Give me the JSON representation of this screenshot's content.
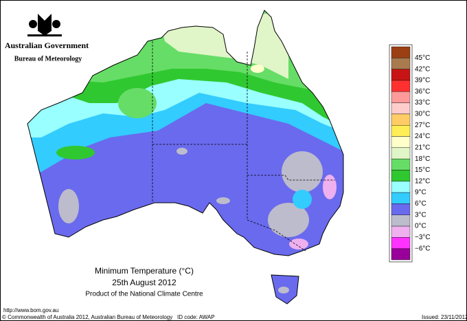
{
  "header": {
    "title": "Australian Government",
    "subtitle": "Bureau of Meteorology"
  },
  "legend": {
    "swatches": [
      "#9b3f14",
      "#a87a4e",
      "#c81414",
      "#ff3030",
      "#ff9a9a",
      "#ffcccc",
      "#ffcc66",
      "#ffee55",
      "#ffffcc",
      "#e0f5c8",
      "#66dd66",
      "#30c830",
      "#99ffff",
      "#33ccff",
      "#6a6aee",
      "#bcbccc",
      "#eeb0ee",
      "#ff33ff",
      "#990099"
    ],
    "labels": [
      "45°C",
      "42°C",
      "39°C",
      "36°C",
      "33°C",
      "30°C",
      "27°C",
      "24°C",
      "21°C",
      "18°C",
      "15°C",
      "12°C",
      "9°C",
      "6°C",
      "3°C",
      "0°C",
      "−3°C",
      "−6°C"
    ]
  },
  "caption": {
    "title": "Minimum Temperature (°C)",
    "date": "25th August 2012",
    "product": "Product of the National Climate Centre"
  },
  "footer": {
    "url": "http://www.bom.gov.au",
    "copyright": "© Commonwealth of Australia 2012, Australian Bureau of Meteorology",
    "id_code": "ID code: AWAP",
    "issued": "Issued: 23/11/2012"
  }
}
